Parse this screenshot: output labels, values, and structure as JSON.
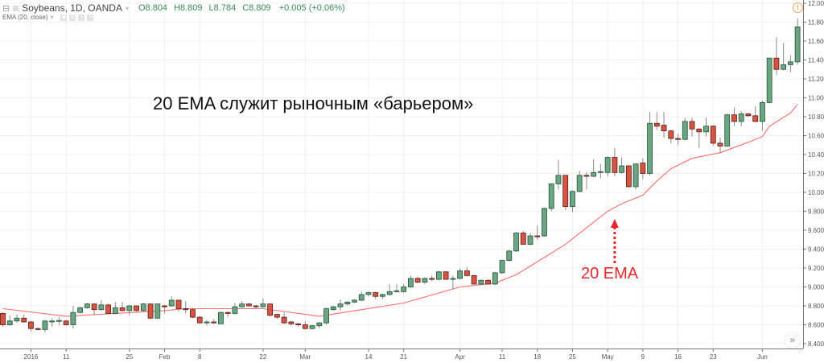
{
  "header": {
    "symbol": "Soybeans, 1D, OANDA",
    "open": "O8.804",
    "high": "H8.809",
    "low": "L8.784",
    "close": "C8.809",
    "change": "+0.005 (+0.06%)",
    "indicator": "EMA (20, close)",
    "dropdown_glyph": "▾"
  },
  "annotations": {
    "headline": "20 EMA служит рыночным «барьером»",
    "ema_label": "20 EMA"
  },
  "icons": {
    "alert": "!",
    "scroll_right": "»",
    "collapse": "⊟"
  },
  "colors": {
    "up": "#6ba583",
    "up_border": "#225437",
    "down": "#d75442",
    "down_border": "#5b1a13",
    "wick": "#8a8a8a",
    "ema": "#ff6b6b",
    "annotation_red": "#e8262b",
    "grid": "#f0f0f0"
  },
  "chart_data": {
    "type": "candlestick",
    "symbol": "Soybeans",
    "interval": "1D",
    "ylim": [
      8.34,
      12.0
    ],
    "grid": true,
    "y_ticks": [
      "12.000",
      "11.800",
      "11.600",
      "11.400",
      "11.200",
      "11.000",
      "10.800",
      "10.600",
      "10.400",
      "10.200",
      "10.000",
      "9.800",
      "9.600",
      "9.400",
      "9.200",
      "9.000",
      "8.800",
      "8.600",
      "8.400"
    ],
    "x_ticks": [
      {
        "label": "2016",
        "bar": 4
      },
      {
        "label": "11",
        "bar": 9
      },
      {
        "label": "25",
        "bar": 18
      },
      {
        "label": "Feb",
        "bar": 23
      },
      {
        "label": "8",
        "bar": 28
      },
      {
        "label": "22",
        "bar": 37
      },
      {
        "label": "Mar",
        "bar": 43
      },
      {
        "label": "14",
        "bar": 52
      },
      {
        "label": "21",
        "bar": 57
      },
      {
        "label": "Apr",
        "bar": 65
      },
      {
        "label": "11",
        "bar": 71
      },
      {
        "label": "18",
        "bar": 76
      },
      {
        "label": "25",
        "bar": 81
      },
      {
        "label": "May",
        "bar": 86
      },
      {
        "label": "9",
        "bar": 91
      },
      {
        "label": "16",
        "bar": 96
      },
      {
        "label": "23",
        "bar": 101
      },
      {
        "label": "Jun",
        "bar": 108
      }
    ],
    "ohlc_fields": [
      "open",
      "high",
      "low",
      "close"
    ],
    "candles": [
      [
        8.72,
        8.73,
        8.58,
        8.6
      ],
      [
        8.6,
        8.7,
        8.59,
        8.64
      ],
      [
        8.64,
        8.71,
        8.62,
        8.67
      ],
      [
        8.67,
        8.71,
        8.62,
        8.63
      ],
      [
        8.63,
        8.64,
        8.53,
        8.56
      ],
      [
        8.56,
        8.57,
        8.54,
        8.55
      ],
      [
        8.55,
        8.65,
        8.52,
        8.64
      ],
      [
        8.63,
        8.67,
        8.58,
        8.64
      ],
      [
        8.64,
        8.68,
        8.6,
        8.645
      ],
      [
        8.64,
        8.65,
        8.59,
        8.6
      ],
      [
        8.6,
        8.8,
        8.56,
        8.73
      ],
      [
        8.73,
        8.79,
        8.72,
        8.78
      ],
      [
        8.78,
        8.83,
        8.77,
        8.82
      ],
      [
        8.82,
        8.82,
        8.7,
        8.76
      ],
      [
        8.76,
        8.86,
        8.75,
        8.81
      ],
      [
        8.81,
        8.82,
        8.71,
        8.72
      ],
      [
        8.72,
        8.84,
        8.71,
        8.78
      ],
      [
        8.78,
        8.84,
        8.74,
        8.75
      ],
      [
        8.75,
        8.81,
        8.7,
        8.8
      ],
      [
        8.8,
        8.8,
        8.74,
        8.75
      ],
      [
        8.75,
        8.83,
        8.74,
        8.82
      ],
      [
        8.82,
        8.82,
        8.66,
        8.67
      ],
      [
        8.67,
        8.82,
        8.66,
        8.82
      ],
      [
        8.8,
        8.81,
        8.72,
        8.79
      ],
      [
        8.8,
        8.9,
        8.79,
        8.86
      ],
      [
        8.86,
        8.86,
        8.74,
        8.77
      ],
      [
        8.77,
        8.85,
        8.72,
        8.76
      ],
      [
        8.76,
        8.78,
        8.67,
        8.68
      ],
      [
        8.68,
        8.69,
        8.61,
        8.62
      ],
      [
        8.62,
        8.65,
        8.59,
        8.63
      ],
      [
        8.63,
        8.66,
        8.61,
        8.62
      ],
      [
        8.61,
        8.74,
        8.61,
        8.73
      ],
      [
        8.73,
        8.74,
        8.68,
        8.72
      ],
      [
        8.72,
        8.83,
        8.71,
        8.79
      ],
      [
        8.79,
        8.85,
        8.78,
        8.82
      ],
      [
        8.82,
        8.83,
        8.79,
        8.8
      ],
      [
        8.8,
        8.81,
        8.77,
        8.79
      ],
      [
        8.79,
        8.88,
        8.78,
        8.82
      ],
      [
        8.82,
        8.82,
        8.69,
        8.7
      ],
      [
        8.71,
        8.72,
        8.66,
        8.68
      ],
      [
        8.68,
        8.73,
        8.61,
        8.62
      ],
      [
        8.63,
        8.64,
        8.59,
        8.61
      ],
      [
        8.61,
        8.62,
        8.58,
        8.6
      ],
      [
        8.6,
        8.64,
        8.55,
        8.56
      ],
      [
        8.56,
        8.6,
        8.55,
        8.59
      ],
      [
        8.59,
        8.63,
        8.56,
        8.62
      ],
      [
        8.62,
        8.78,
        8.6,
        8.77
      ],
      [
        8.76,
        8.8,
        8.75,
        8.79
      ],
      [
        8.79,
        8.87,
        8.75,
        8.82
      ],
      [
        8.82,
        8.85,
        8.8,
        8.84
      ],
      [
        8.84,
        8.87,
        8.83,
        8.86
      ],
      [
        8.86,
        8.95,
        8.85,
        8.92
      ],
      [
        8.92,
        8.95,
        8.9,
        8.94
      ],
      [
        8.94,
        8.95,
        8.87,
        8.9
      ],
      [
        8.9,
        8.93,
        8.87,
        8.92
      ],
      [
        8.92,
        9.03,
        8.91,
        8.95
      ],
      [
        8.95,
        9.03,
        8.94,
        8.96
      ],
      [
        8.95,
        9.03,
        8.94,
        9.0
      ],
      [
        9.0,
        9.12,
        8.99,
        9.09
      ],
      [
        9.09,
        9.11,
        9.04,
        9.05
      ],
      [
        9.05,
        9.1,
        9.03,
        9.09
      ],
      [
        9.09,
        9.12,
        9.06,
        9.08
      ],
      [
        9.08,
        9.17,
        9.07,
        9.16
      ],
      [
        9.16,
        9.16,
        9.08,
        9.08
      ],
      [
        9.08,
        9.12,
        8.98,
        9.09
      ],
      [
        9.09,
        9.2,
        9.08,
        9.17
      ],
      [
        9.17,
        9.21,
        9.11,
        9.12
      ],
      [
        9.12,
        9.13,
        9.03,
        9.03
      ],
      [
        9.03,
        9.08,
        9.02,
        9.07
      ],
      [
        9.07,
        9.08,
        9.03,
        9.03
      ],
      [
        9.03,
        9.16,
        9.02,
        9.15
      ],
      [
        9.15,
        9.29,
        9.14,
        9.28
      ],
      [
        9.28,
        9.39,
        9.27,
        9.38
      ],
      [
        9.38,
        9.58,
        9.37,
        9.57
      ],
      [
        9.57,
        9.59,
        9.45,
        9.45
      ],
      [
        9.45,
        9.57,
        9.44,
        9.54
      ],
      [
        9.54,
        9.65,
        9.5,
        9.53
      ],
      [
        9.54,
        9.84,
        9.53,
        9.83
      ],
      [
        9.83,
        10.09,
        9.8,
        10.09
      ],
      [
        10.09,
        10.34,
        10.03,
        10.18
      ],
      [
        10.18,
        10.18,
        9.81,
        9.85
      ],
      [
        9.85,
        10.02,
        9.79,
        10.01
      ],
      [
        10.01,
        10.23,
        10.0,
        10.18
      ],
      [
        10.18,
        10.21,
        10.03,
        10.17
      ],
      [
        10.17,
        10.35,
        10.16,
        10.21
      ],
      [
        10.21,
        10.3,
        10.15,
        10.22
      ],
      [
        10.21,
        10.38,
        10.17,
        10.37
      ],
      [
        10.37,
        10.47,
        10.17,
        10.21
      ],
      [
        10.21,
        10.37,
        10.2,
        10.28
      ],
      [
        10.28,
        10.29,
        10.05,
        10.06
      ],
      [
        10.06,
        10.31,
        10.03,
        10.3
      ],
      [
        10.31,
        10.36,
        10.14,
        10.2
      ],
      [
        10.2,
        10.85,
        10.18,
        10.73
      ],
      [
        10.73,
        10.85,
        10.66,
        10.7
      ],
      [
        10.71,
        10.85,
        10.58,
        10.65
      ],
      [
        10.65,
        10.66,
        10.52,
        10.57
      ],
      [
        10.57,
        10.62,
        10.5,
        10.56
      ],
      [
        10.56,
        10.79,
        10.55,
        10.75
      ],
      [
        10.75,
        10.79,
        10.59,
        10.67
      ],
      [
        10.67,
        10.68,
        10.47,
        10.64
      ],
      [
        10.64,
        10.79,
        10.59,
        10.7
      ],
      [
        10.7,
        10.71,
        10.49,
        10.52
      ],
      [
        10.52,
        10.58,
        10.42,
        10.49
      ],
      [
        10.49,
        10.83,
        10.48,
        10.82
      ],
      [
        10.82,
        10.9,
        10.7,
        10.75
      ],
      [
        10.75,
        10.86,
        10.7,
        10.83
      ],
      [
        10.83,
        10.84,
        10.8,
        10.81
      ],
      [
        10.81,
        10.91,
        10.74,
        10.75
      ],
      [
        10.75,
        10.97,
        10.65,
        10.95
      ],
      [
        10.95,
        11.42,
        10.94,
        11.42
      ],
      [
        11.42,
        11.64,
        11.24,
        11.3
      ],
      [
        11.3,
        11.58,
        11.29,
        11.35
      ],
      [
        11.35,
        11.45,
        11.27,
        11.38
      ],
      [
        11.38,
        11.84,
        11.35,
        11.75
      ]
    ],
    "ema20": [
      [
        0,
        8.77
      ],
      [
        9,
        8.69
      ],
      [
        16,
        8.72
      ],
      [
        23,
        8.75
      ],
      [
        26,
        8.77
      ],
      [
        37,
        8.77
      ],
      [
        40,
        8.74
      ],
      [
        45,
        8.69
      ],
      [
        57,
        8.83
      ],
      [
        65,
        9.0
      ],
      [
        70,
        9.04
      ],
      [
        73,
        9.13
      ],
      [
        75,
        9.22
      ],
      [
        80,
        9.45
      ],
      [
        86,
        9.8
      ],
      [
        88,
        9.88
      ],
      [
        91,
        9.97
      ],
      [
        93,
        10.12
      ],
      [
        95,
        10.25
      ],
      [
        98,
        10.36
      ],
      [
        102,
        10.42
      ],
      [
        106,
        10.53
      ],
      [
        108,
        10.59
      ],
      [
        109,
        10.7
      ],
      [
        112,
        10.84
      ],
      [
        113,
        10.93
      ]
    ],
    "ema_arrow_target_bar": 87
  }
}
